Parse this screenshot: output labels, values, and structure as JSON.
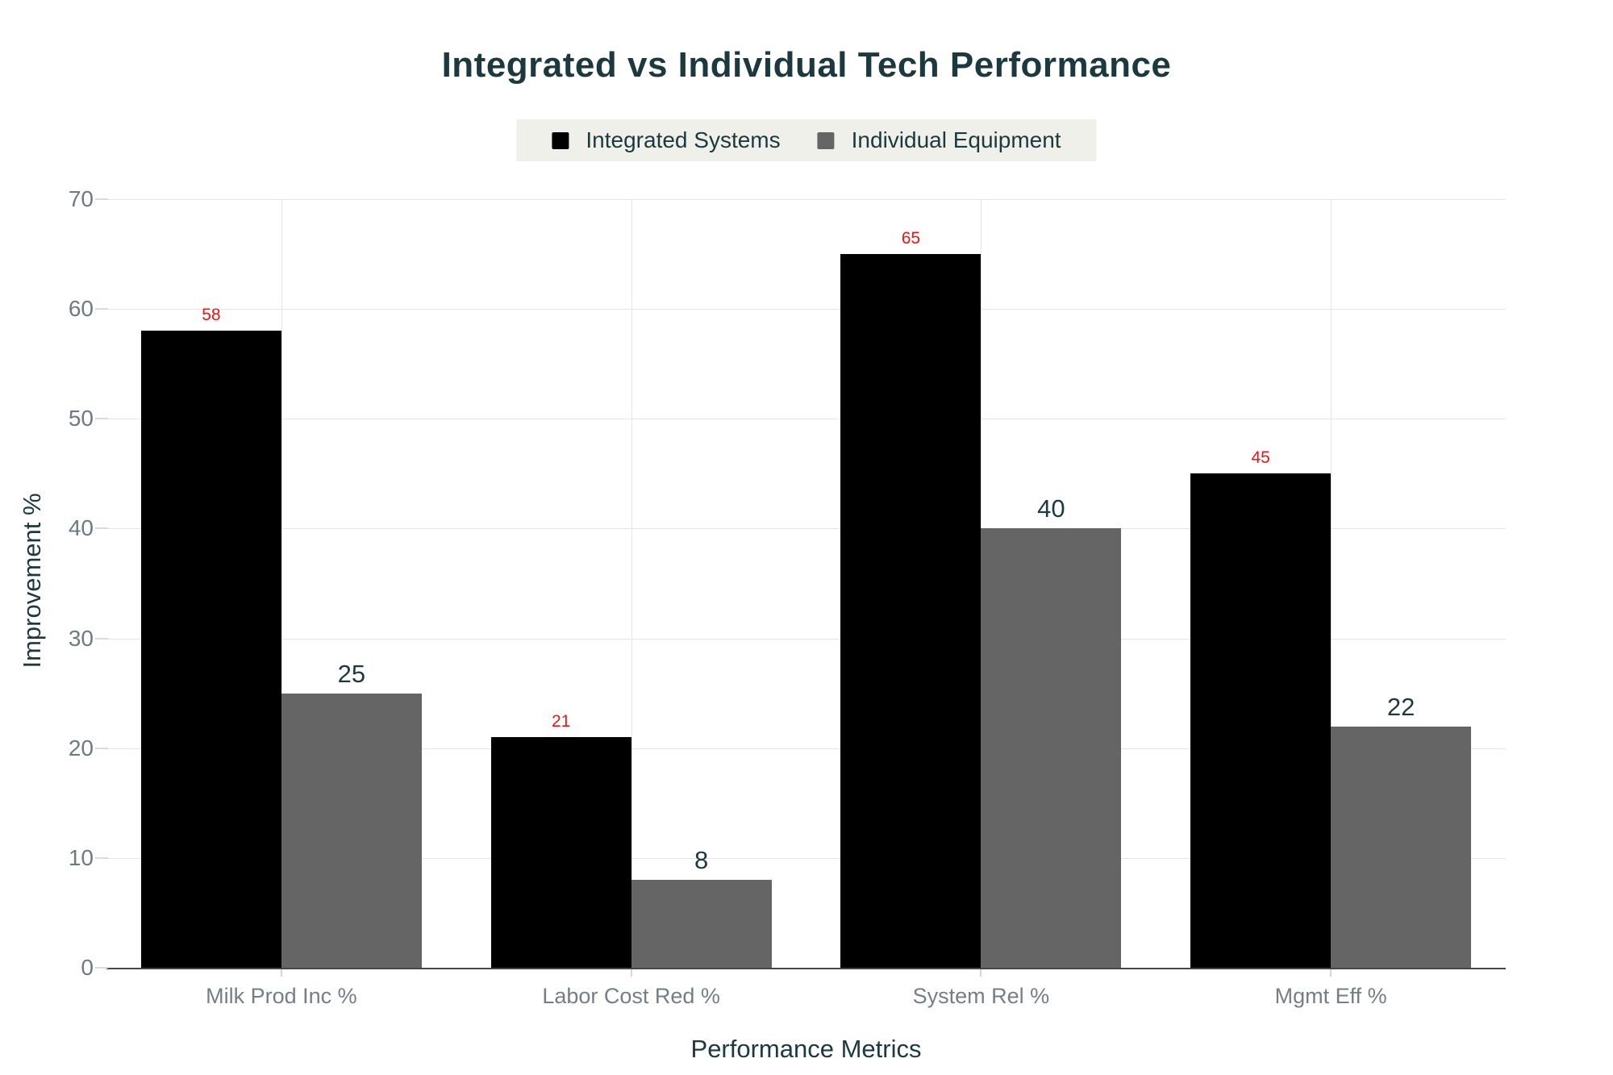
{
  "title": "Integrated vs Individual Tech Performance",
  "legend": {
    "items": [
      {
        "label": "Integrated Systems",
        "color": "#000000"
      },
      {
        "label": "Individual Equipment",
        "color": "#656565"
      }
    ],
    "background": "#f0f0ea"
  },
  "colors": {
    "title_text": "#1c3940",
    "axis_line": "#45484b",
    "gridline": "#e5e5e5",
    "tick_text": "#6e7a80",
    "series_integrated": "#000000",
    "series_individual": "#656565",
    "data_label_integrated": "#f80f0f",
    "data_label_individual": "#1d3a40"
  },
  "chart_data": {
    "type": "bar",
    "title": "Integrated vs Individual Tech Performance",
    "categories": [
      "Milk Prod Inc %",
      "Labor Cost Red %",
      "System Rel %",
      "Mgmt Eff %"
    ],
    "series": [
      {
        "name": "Integrated Systems",
        "color": "#000000",
        "label_color": "#f80f0f",
        "values": [
          58,
          21,
          65,
          45
        ]
      },
      {
        "name": "Individual Equipment",
        "color": "#656565",
        "label_color": "#1d3a40",
        "values": [
          25,
          8,
          40,
          22
        ]
      }
    ],
    "xlabel": "Performance Metrics",
    "ylabel": "Improvement %",
    "ylim": [
      0,
      70
    ],
    "yticks": [
      0,
      10,
      20,
      30,
      40,
      50,
      60,
      70
    ],
    "grid": true,
    "legend_position": "top-center",
    "data_labels": true
  }
}
